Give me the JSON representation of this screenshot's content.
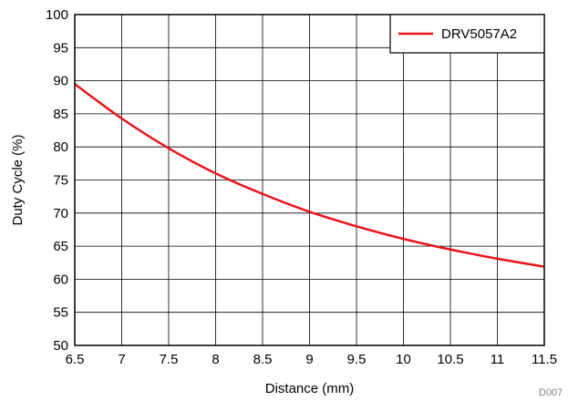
{
  "chart_data": {
    "type": "line",
    "title": "",
    "xlabel": "Distance (mm)",
    "ylabel": "Duty Cycle (%)",
    "xlim": [
      6.5,
      11.5
    ],
    "ylim": [
      50,
      100
    ],
    "x_ticks": [
      "6.5",
      "7",
      "7.5",
      "8",
      "8.5",
      "9",
      "9.5",
      "10",
      "10.5",
      "11",
      "11.5"
    ],
    "y_ticks": [
      "50",
      "55",
      "60",
      "65",
      "70",
      "75",
      "80",
      "85",
      "90",
      "95",
      "100"
    ],
    "grid": true,
    "legend_position": "top-right",
    "series": [
      {
        "name": "DRV5057A2",
        "color": "#e8141b",
        "x": [
          6.5,
          7.0,
          7.5,
          8.0,
          8.5,
          9.0,
          9.5,
          10.0,
          10.5,
          11.0,
          11.5
        ],
        "y": [
          89.5,
          84.3,
          79.8,
          76.0,
          72.9,
          70.2,
          68.0,
          66.1,
          64.5,
          63.1,
          61.9
        ]
      }
    ],
    "annotation": "D007"
  }
}
